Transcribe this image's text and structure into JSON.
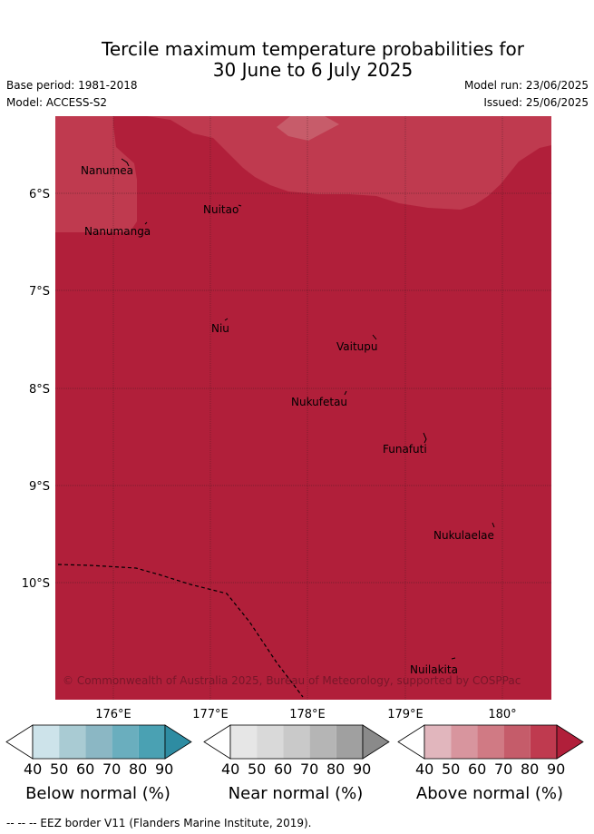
{
  "title": {
    "line1": "Tercile maximum temperature probabilities for",
    "line2": "30 June to 6 July 2025"
  },
  "meta": {
    "base_period": "Base period: 1981-2018",
    "model": "Model: ACCESS-S2",
    "model_run": "Model run: 23/06/2025",
    "issued": "Issued: 25/06/2025"
  },
  "map": {
    "lat_labels": [
      "6°S",
      "7°S",
      "8°S",
      "9°S",
      "10°S"
    ],
    "lon_labels": [
      "176°E",
      "177°E",
      "178°E",
      "179°E",
      "180°"
    ],
    "places": [
      "Nanumea",
      "Nuitao",
      "Nanumanga",
      "Niu",
      "Vaitupu",
      "Nukufetau",
      "Funafuti",
      "Nukulaelae",
      "Nuilakita"
    ],
    "copyright": "© Commonwealth of Australia 2025, Bureau of Meteorology, supported by COSPPac",
    "fill_category": "Above normal",
    "fill_probability_band_main": "80-90",
    "fill_probability_band_north": "70-80",
    "colors": {
      "above_90": "#b11f3a",
      "above_80": "#bf3a4f",
      "above_70": "#c75c6a"
    }
  },
  "colorbars": {
    "ticks": [
      "40",
      "50",
      "60",
      "70",
      "80",
      "90"
    ],
    "below": {
      "label": "Below normal (%)",
      "colors": [
        "#ffffff",
        "#cde3ea",
        "#a9cbd3",
        "#8bb7c4",
        "#6aaebe",
        "#4aa1b3",
        "#2e8ca2"
      ]
    },
    "near": {
      "label": "Near normal (%)",
      "colors": [
        "#ffffff",
        "#e6e6e6",
        "#d9d9d9",
        "#c9c9c9",
        "#b5b5b5",
        "#a0a0a0",
        "#8a8a8a"
      ]
    },
    "above": {
      "label": "Above normal (%)",
      "colors": [
        "#ffffff",
        "#e1b6bd",
        "#d8959e",
        "#d07a84",
        "#c55c6a",
        "#bf3a4f",
        "#b11f3a"
      ]
    }
  },
  "footer": "--  --  -- EEZ border V11 (Flanders Marine Institute, 2019)."
}
